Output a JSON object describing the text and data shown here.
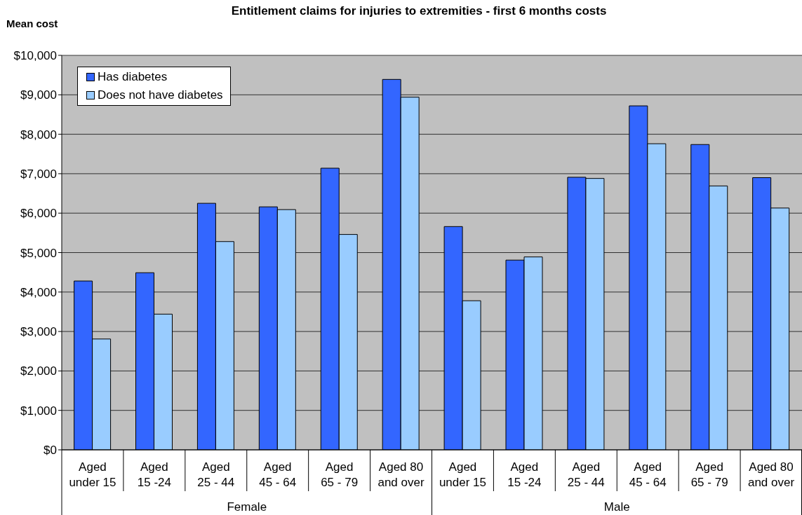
{
  "chart_data": {
    "type": "bar",
    "title": "Entitlement claims for injuries to extremities - first 6 months costs",
    "ylabel": "Mean cost",
    "categories": [
      "Aged under 15",
      "Aged 15 -24",
      "Aged 25 - 44",
      "Aged 45 - 64",
      "Aged 65 - 79",
      "Aged 80 and over",
      "Aged under 15",
      "Aged 15 -24",
      "Aged 25 - 44",
      "Aged 45 - 64",
      "Aged 65 - 79",
      "Aged 80 and over"
    ],
    "series": [
      {
        "name": "Has diabetes",
        "color": "#3366ff",
        "values": [
          4280,
          4490,
          6250,
          6160,
          7140,
          9390,
          5660,
          4810,
          6910,
          8720,
          7740,
          6900
        ]
      },
      {
        "name": "Does not have diabetes",
        "color": "#99ccff",
        "values": [
          2810,
          3440,
          5280,
          6090,
          5460,
          8940,
          3780,
          4890,
          6880,
          7760,
          6690,
          6130
        ]
      }
    ],
    "ylim": [
      0,
      10000
    ],
    "yticks": [
      {
        "value": 0,
        "label": "$0"
      },
      {
        "value": 1000,
        "label": "$1,000"
      },
      {
        "value": 2000,
        "label": "$2,000"
      },
      {
        "value": 3000,
        "label": "$3,000"
      },
      {
        "value": 4000,
        "label": "$4,000"
      },
      {
        "value": 5000,
        "label": "$5,000"
      },
      {
        "value": 6000,
        "label": "$6,000"
      },
      {
        "value": 7000,
        "label": "$7,000"
      },
      {
        "value": 8000,
        "label": "$8,000"
      },
      {
        "value": 9000,
        "label": "$9,000"
      },
      {
        "value": 10000,
        "label": "$10,000"
      }
    ],
    "grid": "y",
    "legend": "top left",
    "annotations": [
      "Female",
      "Male"
    ]
  }
}
